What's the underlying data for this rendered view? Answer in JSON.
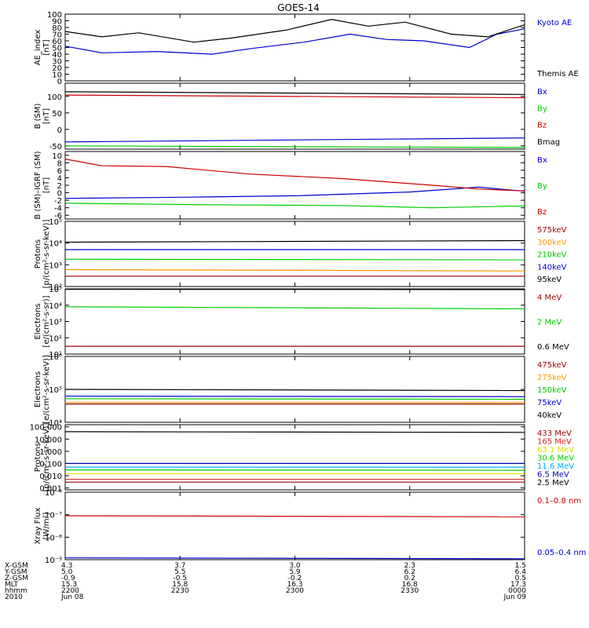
{
  "chart_data": [
    {
      "type": "line",
      "title": "GOES-14",
      "ylabel_lines": [
        "AE_index",
        "[nT]"
      ],
      "ylim": [
        0,
        100
      ],
      "yticks": [
        "0",
        "10",
        "20",
        "30",
        "40",
        "50",
        "60",
        "70",
        "80",
        "90",
        "100"
      ],
      "yscale": "linear",
      "series": [
        {
          "name": "Kyoto AE",
          "color": "#0000cc",
          "x": [
            0.0,
            0.08,
            0.2,
            0.32,
            0.4,
            0.52,
            0.62,
            0.7,
            0.78,
            0.88,
            0.94,
            1.0
          ],
          "values": [
            52,
            42,
            44,
            40,
            48,
            58,
            70,
            62,
            60,
            50,
            70,
            78
          ]
        },
        {
          "name": "Themis AE",
          "color": "#000000",
          "x": [
            0.0,
            0.08,
            0.16,
            0.28,
            0.36,
            0.48,
            0.58,
            0.66,
            0.74,
            0.84,
            0.92,
            1.0
          ],
          "values": [
            74,
            66,
            72,
            58,
            64,
            76,
            92,
            82,
            88,
            70,
            66,
            84
          ]
        }
      ]
    },
    {
      "type": "line",
      "ylabel_lines": [
        "B (SM)",
        "[nT]"
      ],
      "ylim": [
        -60,
        140
      ],
      "yticks": [
        "-50",
        "0",
        "50",
        "100"
      ],
      "yscale": "linear",
      "series": [
        {
          "name": "Bx",
          "color": "#0000cc",
          "x": [
            0.0,
            1.0
          ],
          "values": [
            -38,
            -26
          ]
        },
        {
          "name": "By",
          "color": "#00cc00",
          "x": [
            0.0,
            1.0
          ],
          "values": [
            -50,
            -55
          ]
        },
        {
          "name": "Bz",
          "color": "#cc0000",
          "x": [
            0.0,
            1.0
          ],
          "values": [
            104,
            96
          ]
        },
        {
          "name": "Bmag",
          "color": "#000000",
          "x": [
            0.0,
            1.0
          ],
          "values": [
            114,
            106
          ]
        }
      ]
    },
    {
      "type": "line",
      "ylabel_lines": [
        "B (SM)–IGRF (SM)",
        "[nT]"
      ],
      "ylim": [
        -7,
        11
      ],
      "yticks": [
        "-6",
        "-4",
        "-2",
        "0",
        "2",
        "4",
        "6",
        "8",
        "10"
      ],
      "yscale": "linear",
      "series": [
        {
          "name": "Bx",
          "color": "#0000cc",
          "x": [
            0.0,
            0.25,
            0.5,
            0.75,
            0.9,
            1.0
          ],
          "values": [
            -1.5,
            -1.2,
            -0.8,
            0.2,
            1.5,
            0.4
          ]
        },
        {
          "name": "By",
          "color": "#00cc00",
          "x": [
            0.0,
            0.3,
            0.6,
            0.8,
            1.0
          ],
          "values": [
            -2.8,
            -3.2,
            -3.4,
            -4.0,
            -3.5
          ]
        },
        {
          "name": "Bz",
          "color": "#cc0000",
          "x": [
            0.0,
            0.08,
            0.22,
            0.4,
            0.6,
            0.8,
            0.9,
            1.0
          ],
          "values": [
            9.0,
            7.2,
            7.0,
            5.0,
            3.8,
            2.0,
            1.0,
            0.5
          ]
        }
      ]
    },
    {
      "type": "line",
      "ylabel_lines": [
        "Protons",
        "[p/(cm²-s-sr-keV)]"
      ],
      "ylim": [
        100,
        100000
      ],
      "yticks": [
        "10²",
        "10³",
        "10⁴",
        "10⁵"
      ],
      "yscale": "log",
      "series": [
        {
          "name": "575keV",
          "color": "#990000",
          "x": [
            0.0,
            1.0
          ],
          "values": [
            300,
            300
          ]
        },
        {
          "name": "300keV",
          "color": "#ff9900",
          "x": [
            0.0,
            1.0
          ],
          "values": [
            600,
            520
          ]
        },
        {
          "name": "210keV",
          "color": "#00cc00",
          "x": [
            0.0,
            1.0
          ],
          "values": [
            1800,
            1700
          ]
        },
        {
          "name": "140keV",
          "color": "#0000cc",
          "x": [
            0.0,
            1.0
          ],
          "values": [
            5000,
            5000
          ]
        },
        {
          "name": "95keV",
          "color": "#000000",
          "x": [
            0.0,
            1.0
          ],
          "values": [
            11000,
            13000
          ]
        }
      ]
    },
    {
      "type": "line",
      "ylabel_lines": [
        "Electrons",
        "[e/(cm²-s-sr)]"
      ],
      "ylim": [
        10,
        100000
      ],
      "yticks": [
        "10¹",
        "10²",
        "10³",
        "10⁴",
        "10⁵"
      ],
      "yscale": "log",
      "series": [
        {
          "name": "4 MeV",
          "color": "#990000",
          "x": [
            0.0,
            1.0
          ],
          "values": [
            30,
            30
          ]
        },
        {
          "name": "2 MeV",
          "color": "#00cc00",
          "x": [
            0.0,
            1.0
          ],
          "values": [
            8000,
            6000
          ]
        },
        {
          "name": "0.6 MeV",
          "color": "#000000",
          "x": [
            0.0,
            1.0
          ],
          "values": [
            95000,
            90000
          ]
        }
      ]
    },
    {
      "type": "line",
      "ylabel_lines": [
        "Electrons",
        "[e/(cm²-s-sr-keV)]"
      ],
      "ylim": [
        10000,
        1000000
      ],
      "yticks": [
        "10⁴",
        "10⁵",
        "10⁶"
      ],
      "yscale": "log",
      "series": [
        {
          "name": "475keV",
          "color": "#990000",
          "x": [
            0.0,
            1.0
          ],
          "values": [
            36000,
            36000
          ]
        },
        {
          "name": "275keV",
          "color": "#ff9900",
          "x": [
            0.0,
            1.0
          ],
          "values": [
            40000,
            40000
          ]
        },
        {
          "name": "150keV",
          "color": "#00cc00",
          "x": [
            0.0,
            1.0
          ],
          "values": [
            52000,
            50000
          ]
        },
        {
          "name": "75keV",
          "color": "#0000cc",
          "x": [
            0.0,
            1.0
          ],
          "values": [
            62000,
            60000
          ]
        },
        {
          "name": "40keV",
          "color": "#000000",
          "x": [
            0.0,
            1.0
          ],
          "values": [
            100000,
            92000
          ]
        }
      ]
    },
    {
      "type": "line",
      "ylabel_lines": [
        "Protons",
        "[p/(cm²-s-sr-keV)]"
      ],
      "ylim": [
        0.0007,
        150
      ],
      "yticks": [
        "0.001",
        "0.010",
        "0.100",
        "1.000",
        "10.000",
        "100.000"
      ],
      "yscale": "log",
      "series": [
        {
          "name": "433 MeV",
          "color": "#990000",
          "x": [
            0.0,
            1.0
          ],
          "values": [
            0.003,
            0.003
          ]
        },
        {
          "name": "165 MeV",
          "color": "#dd2222",
          "x": [
            0.0,
            1.0
          ],
          "values": [
            0.005,
            0.005
          ]
        },
        {
          "name": "63.1 MeV",
          "color": "#dddd00",
          "x": [
            0.0,
            1.0
          ],
          "values": [
            0.015,
            0.015
          ]
        },
        {
          "name": "30.6 MeV",
          "color": "#00cc00",
          "x": [
            0.0,
            1.0
          ],
          "values": [
            0.03,
            0.028
          ]
        },
        {
          "name": "11.6 MeV",
          "color": "#00aaff",
          "x": [
            0.0,
            1.0
          ],
          "values": [
            0.05,
            0.05
          ]
        },
        {
          "name": "6.5 MeV",
          "color": "#0000aa",
          "x": [
            0.0,
            1.0
          ],
          "values": [
            0.1,
            0.1
          ]
        },
        {
          "name": "2.5 MeV",
          "color": "#000000",
          "x": [
            0.0,
            1.0
          ],
          "values": [
            40,
            35
          ]
        }
      ]
    },
    {
      "type": "line",
      "ylabel_lines": [
        "Xray Flux",
        "[W/m²]"
      ],
      "ylim": [
        1e-09,
        1e-06
      ],
      "yticks": [
        "10⁻⁹",
        "10⁻⁸",
        "10⁻⁷",
        "10⁻⁶"
      ],
      "yscale": "log",
      "series": [
        {
          "name": "0.1–0.8 nm",
          "color": "#cc0000",
          "x": [
            0.0,
            1.0
          ],
          "values": [
            9e-08,
            8e-08
          ]
        },
        {
          "name": "0.05–0.4 nm",
          "color": "#0000cc",
          "x": [
            0.0,
            1.0
          ],
          "values": [
            1.2e-09,
            1.1e-09
          ]
        }
      ]
    }
  ],
  "footer": {
    "row_labels": [
      "X-GSM",
      "Y-GSM",
      "Z-GSM",
      "MLT",
      "hhmm",
      "2010"
    ],
    "columns": [
      {
        "values": [
          "4.3",
          "5.0",
          "-0.9",
          "15.3",
          "2200",
          "Jun 08"
        ]
      },
      {
        "values": [
          "3.7",
          "5.5",
          "-0.5",
          "15.8",
          "2230",
          ""
        ]
      },
      {
        "values": [
          "3.0",
          "5.9",
          "-0.2",
          "16.3",
          "2300",
          ""
        ]
      },
      {
        "values": [
          "2.3",
          "6.2",
          "0.2",
          "16.8",
          "2330",
          ""
        ]
      },
      {
        "values": [
          "1.5",
          "6.4",
          "0.5",
          "17.3",
          "0000",
          "Jun 09"
        ]
      }
    ]
  }
}
